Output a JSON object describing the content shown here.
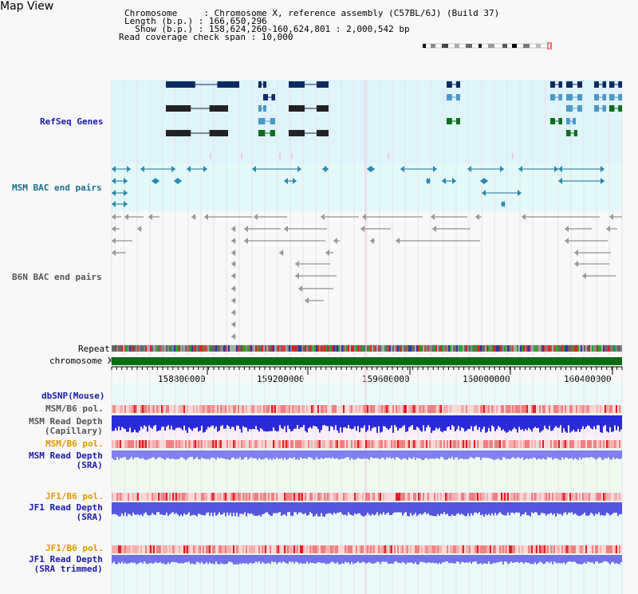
{
  "title": "Map View",
  "header": {
    "line1": "Chromosome     : Chromosome X, reference assembly (C57BL/6J) (Build 37)",
    "line2": "Length (b.p.) : 166,650,296",
    "line3": "  Show (b.p.) : 158,624,260-160,624,801 : 2,000,542 bp",
    "line4": "Read coverage check span : 10,000"
  },
  "tracks": {
    "refseq": "RefSeq Genes",
    "msm_bac": "MSM BAC end pairs",
    "b6n_bac": "B6N BAC end pairs",
    "repeat": "Repeat",
    "chromosome": "chromosome X",
    "dbsnp": "dbSNP(Mouse)",
    "msm_b6_pol_1": "MSM/B6 pol.",
    "msm_depth_cap": "MSM Read Depth\n(Capillary)",
    "msm_b6_pol_2": "MSM/B6 pol.",
    "msm_depth_sra": "MSM Read Depth\n(SRA)",
    "jf1_b6_pol_1": "JF1/B6 pol.",
    "jf1_depth_sra": "JF1 Read Depth\n(SRA)",
    "jf1_b6_pol_2": "JF1/B6 pol.",
    "jf1_depth_trim": "JF1 Read Depth\n(SRA trimmed)"
  },
  "axis": {
    "ticks": [
      "158800000",
      "159200000",
      "159600000",
      "160000000",
      "160400000"
    ]
  },
  "colors": {
    "refseq_bg": "#dff3fb",
    "msm_bac_bg": "#e3f8f8",
    "gene_dark": "#0e2a63",
    "gene_mid": "#4a98c8",
    "gene_green": "#0e6e1e",
    "chrom_green": "#0a6e10"
  }
}
